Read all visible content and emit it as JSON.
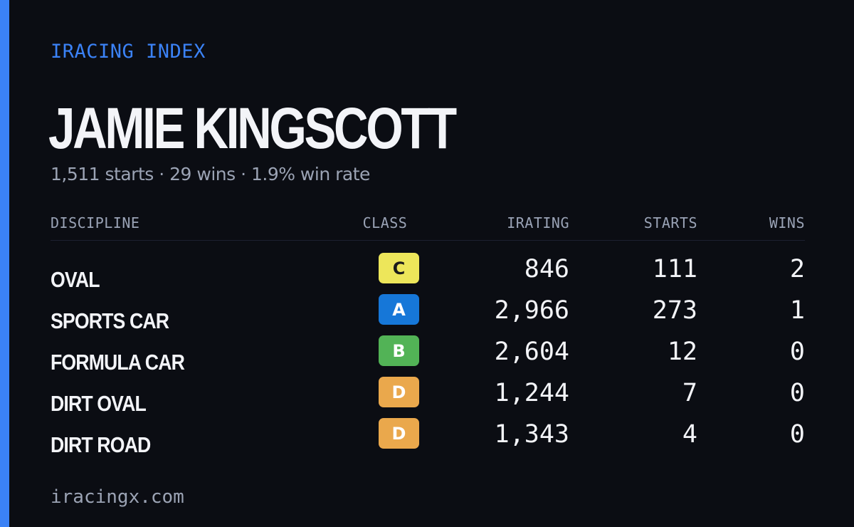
{
  "brand": "IRACING INDEX",
  "driver": {
    "name": "JAMIE KINGSCOTT",
    "summary": "1,511 starts · 29 wins · 1.9% win rate"
  },
  "table": {
    "headers": {
      "discipline": "DISCIPLINE",
      "class": "CLASS",
      "irating": "IRATING",
      "starts": "STARTS",
      "wins": "WINS"
    },
    "rows": [
      {
        "discipline": "OVAL",
        "class": "C",
        "class_color": "#ede65a",
        "class_text_color": "#1b1b1b",
        "irating": "846",
        "starts": "111",
        "wins": "2"
      },
      {
        "discipline": "SPORTS CAR",
        "class": "A",
        "class_color": "#1677d8",
        "class_text_color": "#ffffff",
        "irating": "2,966",
        "starts": "273",
        "wins": "1"
      },
      {
        "discipline": "FORMULA CAR",
        "class": "B",
        "class_color": "#52b356",
        "class_text_color": "#ffffff",
        "irating": "2,604",
        "starts": "12",
        "wins": "0"
      },
      {
        "discipline": "DIRT OVAL",
        "class": "D",
        "class_color": "#eaa84c",
        "class_text_color": "#ffffff",
        "irating": "1,244",
        "starts": "7",
        "wins": "0"
      },
      {
        "discipline": "DIRT ROAD",
        "class": "D",
        "class_color": "#eaa84c",
        "class_text_color": "#ffffff",
        "irating": "1,343",
        "starts": "4",
        "wins": "0"
      }
    ]
  },
  "footer": {
    "url": "iracingx.com"
  },
  "colors": {
    "background": "#0b0d13",
    "accent": "#3b82f6",
    "text_primary": "#f3f4f8",
    "text_muted": "#9ba3b4"
  }
}
